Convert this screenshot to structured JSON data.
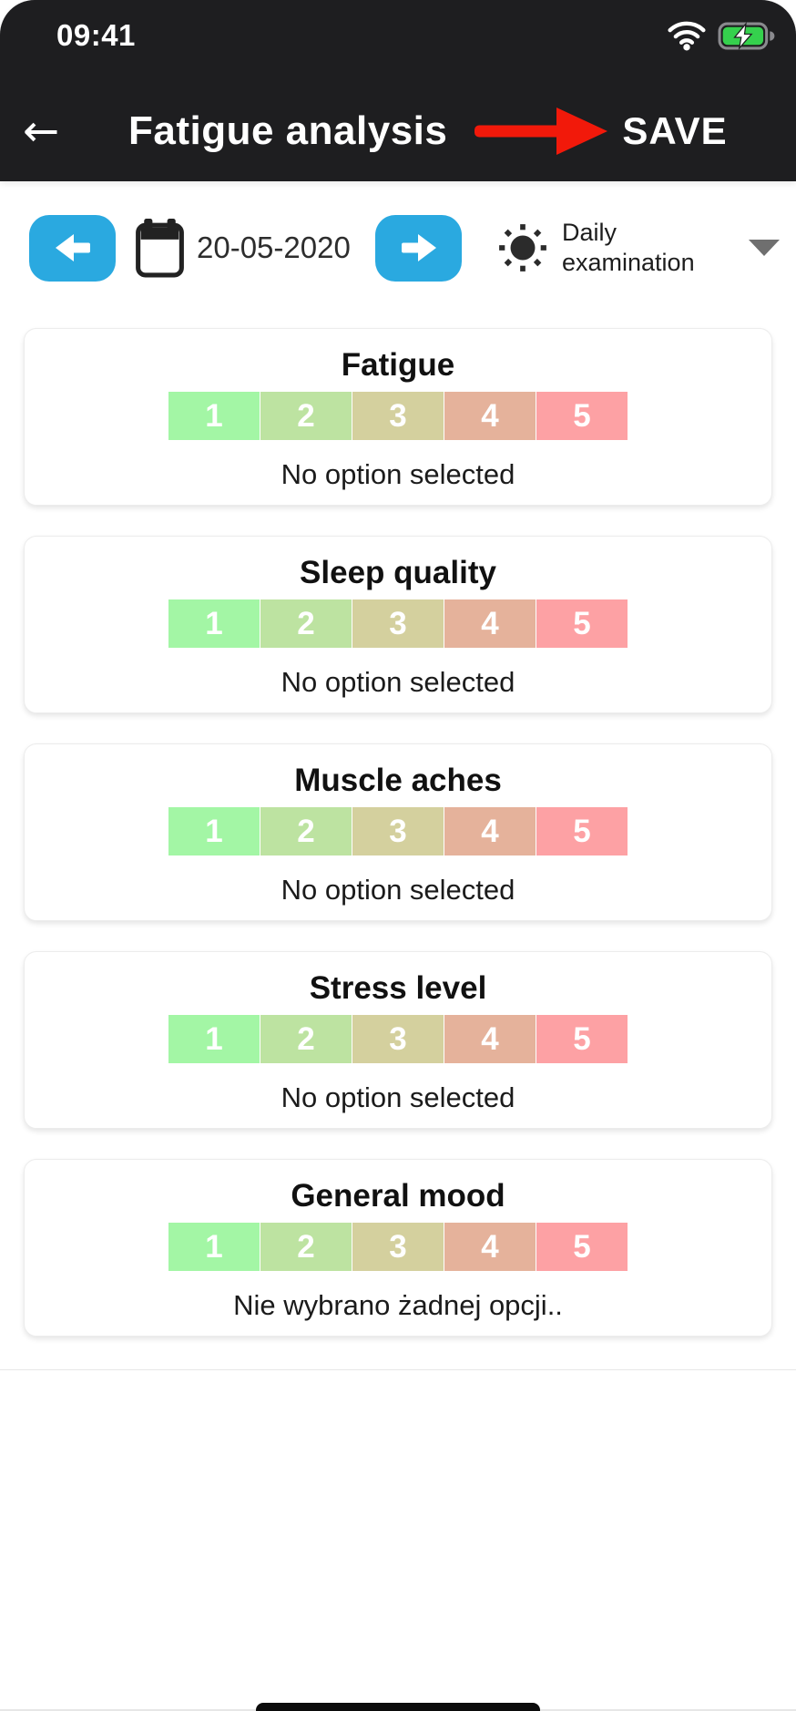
{
  "status_bar": {
    "time": "09:41"
  },
  "header": {
    "title": "Fatigue analysis",
    "save_label": "SAVE"
  },
  "icons": {
    "back": "←"
  },
  "date_bar": {
    "date": "20-05-2020",
    "mode_line1": "Daily",
    "mode_line2": "examination"
  },
  "cards": [
    {
      "title": "Fatigue",
      "options": [
        "1",
        "2",
        "3",
        "4",
        "5"
      ],
      "status": "No option selected"
    },
    {
      "title": "Sleep quality",
      "options": [
        "1",
        "2",
        "3",
        "4",
        "5"
      ],
      "status": "No option selected"
    },
    {
      "title": "Muscle aches",
      "options": [
        "1",
        "2",
        "3",
        "4",
        "5"
      ],
      "status": "No option selected"
    },
    {
      "title": "Stress level",
      "options": [
        "1",
        "2",
        "3",
        "4",
        "5"
      ],
      "status": "No option selected"
    },
    {
      "title": "General mood",
      "options": [
        "1",
        "2",
        "3",
        "4",
        "5"
      ],
      "status": "Nie wybrano żadnej opcji.."
    }
  ],
  "colors": {
    "accent_blue": "#2aa9e0",
    "arrow_red": "#f2190a",
    "battery_green": "#35d14d",
    "header_bg": "#1e1e20",
    "rating_scale": [
      "#a3f6a5",
      "#bde3a1",
      "#d4d09e",
      "#e5b29b",
      "#fda1a4"
    ]
  }
}
